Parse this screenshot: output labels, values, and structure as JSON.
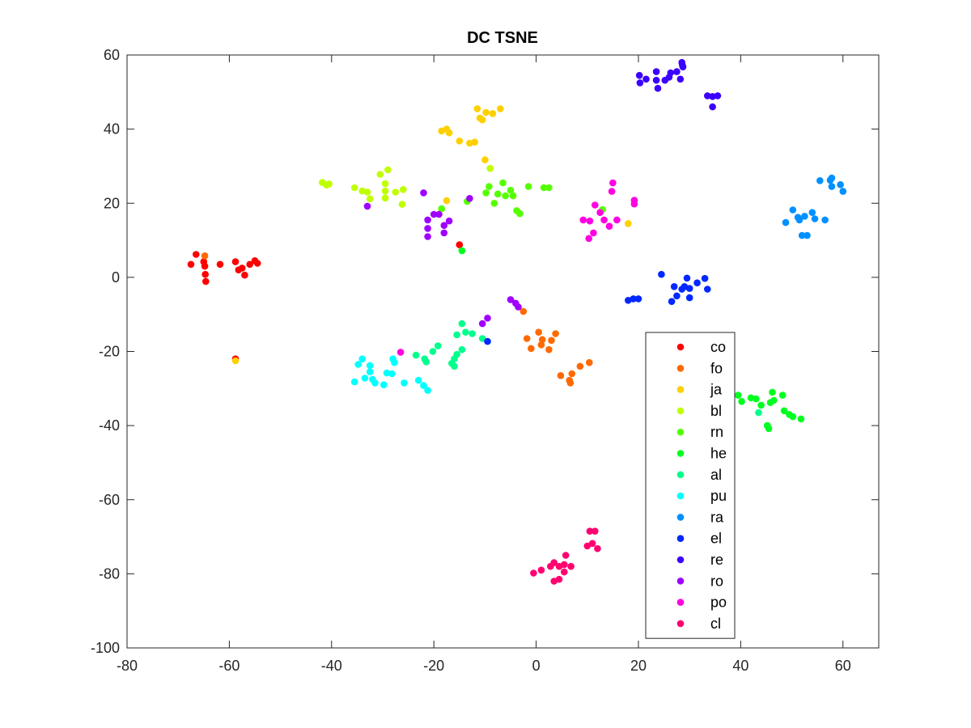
{
  "chart_data": {
    "type": "scatter",
    "title": "DC TSNE",
    "xlabel": "",
    "ylabel": "",
    "xlim": [
      -80,
      67
    ],
    "ylim": [
      -100,
      60
    ],
    "xticks": [
      -80,
      -60,
      -40,
      -20,
      0,
      20,
      40,
      60
    ],
    "yticks": [
      -100,
      -80,
      -60,
      -40,
      -20,
      0,
      20,
      40,
      60
    ],
    "grid": false,
    "legend_position": "bottom-right",
    "series": [
      {
        "name": "co",
        "color": "#ff0000",
        "points": [
          [
            -67.5,
            3.5
          ],
          [
            -66.5,
            6.2
          ],
          [
            -65,
            4.2
          ],
          [
            -64.8,
            3
          ],
          [
            -64.7,
            0.8
          ],
          [
            -64.6,
            -1.1
          ],
          [
            -61.8,
            3.5
          ],
          [
            -58.8,
            4.2
          ],
          [
            -58.2,
            2
          ],
          [
            -57.5,
            2.5
          ],
          [
            -57,
            0.6
          ],
          [
            -56,
            3.5
          ],
          [
            -55,
            4.5
          ],
          [
            -54.5,
            3.8
          ],
          [
            -58.8,
            -22
          ],
          [
            -15,
            8.8
          ]
        ]
      },
      {
        "name": "fo",
        "color": "#ff6a00",
        "points": [
          [
            -64.8,
            5.8
          ],
          [
            -2.5,
            -9.2
          ],
          [
            -1.8,
            -16.5
          ],
          [
            0.5,
            -14.8
          ],
          [
            -1,
            -19.2
          ],
          [
            1,
            -18.2
          ],
          [
            1.2,
            -16.8
          ],
          [
            2.5,
            -19.5
          ],
          [
            3,
            -17
          ],
          [
            3.8,
            -15.2
          ],
          [
            4.8,
            -26.5
          ],
          [
            6.5,
            -27.8
          ],
          [
            6.7,
            -28.5
          ],
          [
            7,
            -26
          ],
          [
            8.6,
            -24
          ],
          [
            10.4,
            -23
          ]
        ]
      },
      {
        "name": "ja",
        "color": "#ffd000",
        "points": [
          [
            -58.8,
            -22.5
          ],
          [
            -11.5,
            45.5
          ],
          [
            -11,
            43
          ],
          [
            -10.5,
            42.5
          ],
          [
            -9.8,
            44.5
          ],
          [
            -8.5,
            44.2
          ],
          [
            -7,
            45.5
          ],
          [
            -18.5,
            39.5
          ],
          [
            -17.5,
            40
          ],
          [
            -17,
            39
          ],
          [
            -15,
            36.8
          ],
          [
            -13,
            36.2
          ],
          [
            -12,
            36.5
          ],
          [
            -10,
            31.7
          ],
          [
            -17.5,
            20.7
          ],
          [
            18,
            14.5
          ]
        ]
      },
      {
        "name": "bl",
        "color": "#bfff00",
        "points": [
          [
            -41.8,
            25.6
          ],
          [
            -41,
            24.9
          ],
          [
            -40.5,
            25.2
          ],
          [
            -35.5,
            24.2
          ],
          [
            -34,
            23.3
          ],
          [
            -33,
            23
          ],
          [
            -32.5,
            21.2
          ],
          [
            -30.5,
            27.8
          ],
          [
            -29.5,
            25.3
          ],
          [
            -29.5,
            23.3
          ],
          [
            -29.5,
            21.4
          ],
          [
            -29,
            29
          ],
          [
            -27.5,
            23
          ],
          [
            -26,
            23.7
          ],
          [
            -26.2,
            19.7
          ],
          [
            -9,
            29.4
          ]
        ]
      },
      {
        "name": "rn",
        "color": "#55ff00",
        "points": [
          [
            -13.5,
            20.5
          ],
          [
            -9.8,
            22.8
          ],
          [
            -9.2,
            24.5
          ],
          [
            -8.2,
            20
          ],
          [
            -7.5,
            22.5
          ],
          [
            -6.5,
            25.5
          ],
          [
            -6,
            22
          ],
          [
            -5,
            23.5
          ],
          [
            -4.5,
            22
          ],
          [
            -3.8,
            18
          ],
          [
            -3.2,
            17.2
          ],
          [
            -1.5,
            24.5
          ],
          [
            1.5,
            24.2
          ],
          [
            2.5,
            24.2
          ],
          [
            -18.5,
            18.5
          ],
          [
            13,
            18.3
          ]
        ]
      },
      {
        "name": "he",
        "color": "#00ff20",
        "points": [
          [
            39.5,
            -31.8
          ],
          [
            40.2,
            -33.5
          ],
          [
            42,
            -32.5
          ],
          [
            43,
            -32.8
          ],
          [
            44,
            -34.5
          ],
          [
            45.2,
            -40
          ],
          [
            45.5,
            -40.8
          ],
          [
            45.8,
            -33.8
          ],
          [
            46.2,
            -31
          ],
          [
            46.5,
            -33.2
          ],
          [
            48.2,
            -31.8
          ],
          [
            48.5,
            -36
          ],
          [
            49.5,
            -37
          ],
          [
            50.2,
            -37.6
          ],
          [
            51.8,
            -38.2
          ],
          [
            -14.5,
            7.2
          ]
        ]
      },
      {
        "name": "al",
        "color": "#00ff8c",
        "points": [
          [
            -23.5,
            -21
          ],
          [
            -21.8,
            -22
          ],
          [
            -21.5,
            -22.8
          ],
          [
            -20.2,
            -20
          ],
          [
            -19.2,
            -18.5
          ],
          [
            -16.5,
            -23.2
          ],
          [
            -16,
            -22
          ],
          [
            -15.5,
            -20.8
          ],
          [
            -15.5,
            -15.5
          ],
          [
            -14.5,
            -12.5
          ],
          [
            -14.5,
            -19.5
          ],
          [
            -13.8,
            -14.8
          ],
          [
            -12.5,
            -15.2
          ],
          [
            -10.5,
            -16.5
          ],
          [
            -16,
            -24
          ],
          [
            43.5,
            -36.5
          ]
        ]
      },
      {
        "name": "pu",
        "color": "#00ffff",
        "points": [
          [
            -35.5,
            -28.2
          ],
          [
            -34.8,
            -23.5
          ],
          [
            -34,
            -22
          ],
          [
            -33.5,
            -27.2
          ],
          [
            -32.5,
            -23.8
          ],
          [
            -32.5,
            -25.5
          ],
          [
            -32,
            -27.5
          ],
          [
            -31.5,
            -28.5
          ],
          [
            -29.8,
            -29
          ],
          [
            -29.2,
            -25.8
          ],
          [
            -28.2,
            -26
          ],
          [
            -28,
            -22
          ],
          [
            -27.7,
            -23
          ],
          [
            -25.8,
            -28.5
          ],
          [
            -23,
            -27.8
          ],
          [
            -22,
            -29.2
          ],
          [
            -21.2,
            -30.5
          ]
        ]
      },
      {
        "name": "ra",
        "color": "#0090ff",
        "points": [
          [
            55.5,
            26.1
          ],
          [
            57.5,
            26.2
          ],
          [
            57.8,
            26.8
          ],
          [
            57.8,
            24.5
          ],
          [
            59.5,
            25
          ],
          [
            60,
            23.2
          ],
          [
            50.2,
            18.2
          ],
          [
            51.2,
            16.2
          ],
          [
            51.5,
            15.5
          ],
          [
            52.5,
            16.5
          ],
          [
            52,
            11.3
          ],
          [
            53,
            11.3
          ],
          [
            54,
            17.5
          ],
          [
            54.5,
            15.8
          ],
          [
            56.5,
            15.5
          ],
          [
            48.8,
            14.8
          ]
        ]
      },
      {
        "name": "el",
        "color": "#0028ff",
        "points": [
          [
            18,
            -6.2
          ],
          [
            19,
            -5.8
          ],
          [
            20,
            -5.8
          ],
          [
            24.5,
            0.8
          ],
          [
            26.5,
            -6.5
          ],
          [
            27,
            -2.5
          ],
          [
            27.5,
            -5
          ],
          [
            28.5,
            -3.2
          ],
          [
            29,
            -2.5
          ],
          [
            29.5,
            -0.2
          ],
          [
            30,
            -3
          ],
          [
            30,
            -5.5
          ],
          [
            31.5,
            -1.5
          ],
          [
            33,
            -0.3
          ],
          [
            33.5,
            -3.2
          ],
          [
            -9.5,
            -17.3
          ]
        ]
      },
      {
        "name": "re",
        "color": "#3c00ff",
        "points": [
          [
            20.2,
            54.5
          ],
          [
            20.3,
            52.5
          ],
          [
            21.5,
            53.5
          ],
          [
            23.5,
            55.5
          ],
          [
            23.5,
            53.2
          ],
          [
            23.8,
            51
          ],
          [
            25.2,
            53.2
          ],
          [
            26,
            54
          ],
          [
            26.3,
            55.2
          ],
          [
            27.5,
            55.5
          ],
          [
            28.2,
            53.5
          ],
          [
            28.5,
            58
          ],
          [
            28.6,
            57.3
          ],
          [
            28.7,
            56.8
          ],
          [
            33.5,
            49
          ],
          [
            34.5,
            48.8
          ],
          [
            35.5,
            49
          ],
          [
            34.5,
            46
          ]
        ]
      },
      {
        "name": "ro",
        "color": "#a000ff",
        "points": [
          [
            -21.2,
            15.5
          ],
          [
            -21.2,
            13.2
          ],
          [
            -21.2,
            11
          ],
          [
            -20,
            17
          ],
          [
            -19,
            17
          ],
          [
            -18,
            12
          ],
          [
            -18,
            14
          ],
          [
            -17,
            15.2
          ],
          [
            -13,
            21.3
          ],
          [
            -22,
            22.8
          ],
          [
            -33,
            19.2
          ],
          [
            -5,
            -6
          ],
          [
            -4,
            -7
          ],
          [
            -3.5,
            -8
          ],
          [
            -9.5,
            -11
          ],
          [
            -10.5,
            -12.5
          ]
        ]
      },
      {
        "name": "po",
        "color": "#ff00e0",
        "points": [
          [
            9.2,
            15.5
          ],
          [
            10.3,
            10.5
          ],
          [
            10.5,
            15.2
          ],
          [
            11.2,
            12
          ],
          [
            11.5,
            19.5
          ],
          [
            12.5,
            17.5
          ],
          [
            13.3,
            15.5
          ],
          [
            14.3,
            13.8
          ],
          [
            14.8,
            23.2
          ],
          [
            15,
            25.5
          ],
          [
            15.8,
            15.5
          ],
          [
            19.2,
            20.8
          ],
          [
            19.2,
            19.8
          ],
          [
            -26.5,
            -20.2
          ]
        ]
      },
      {
        "name": "cl",
        "color": "#ff0070",
        "points": [
          [
            -0.5,
            -79.8
          ],
          [
            1,
            -79
          ],
          [
            2.8,
            -78
          ],
          [
            3.5,
            -77
          ],
          [
            4.5,
            -78
          ],
          [
            3.5,
            -82
          ],
          [
            4.5,
            -81.5
          ],
          [
            5.5,
            -77.5
          ],
          [
            5.5,
            -79.5
          ],
          [
            5.8,
            -75
          ],
          [
            6.8,
            -78
          ],
          [
            10,
            -72.5
          ],
          [
            10.5,
            -68.5
          ],
          [
            11,
            -71.8
          ],
          [
            11.5,
            -68.5
          ],
          [
            12,
            -73.2
          ]
        ]
      }
    ]
  }
}
